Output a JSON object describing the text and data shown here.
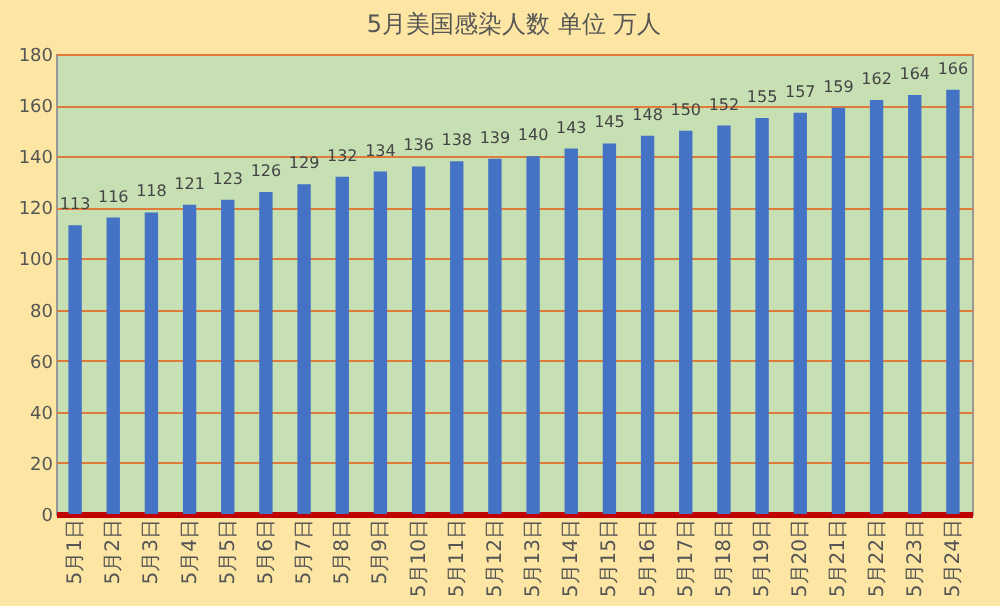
{
  "chart_data": {
    "type": "bar",
    "title": "5月美国感染人数 单位 万人",
    "categories": [
      "5月1日",
      "5月2日",
      "5月3日",
      "5月4日",
      "5月5日",
      "5月6日",
      "5月7日",
      "5月8日",
      "5月9日",
      "5月10日",
      "5月11日",
      "5月12日",
      "5月13日",
      "5月14日",
      "5月15日",
      "5月16日",
      "5月17日",
      "5月18日",
      "5月19日",
      "5月20日",
      "5月21日",
      "5月22日",
      "5月23日",
      "5月24日"
    ],
    "values": [
      113,
      116,
      118,
      121,
      123,
      126,
      129,
      132,
      134,
      136,
      138,
      139,
      140,
      143,
      145,
      148,
      150,
      152,
      155,
      157,
      159,
      162,
      164,
      166
    ],
    "color": "#4472c4",
    "ylim": [
      0,
      180
    ],
    "yticks": [
      0,
      20,
      40,
      60,
      80,
      100,
      120,
      140,
      160,
      180
    ],
    "grid": "y",
    "data_labels": true
  }
}
